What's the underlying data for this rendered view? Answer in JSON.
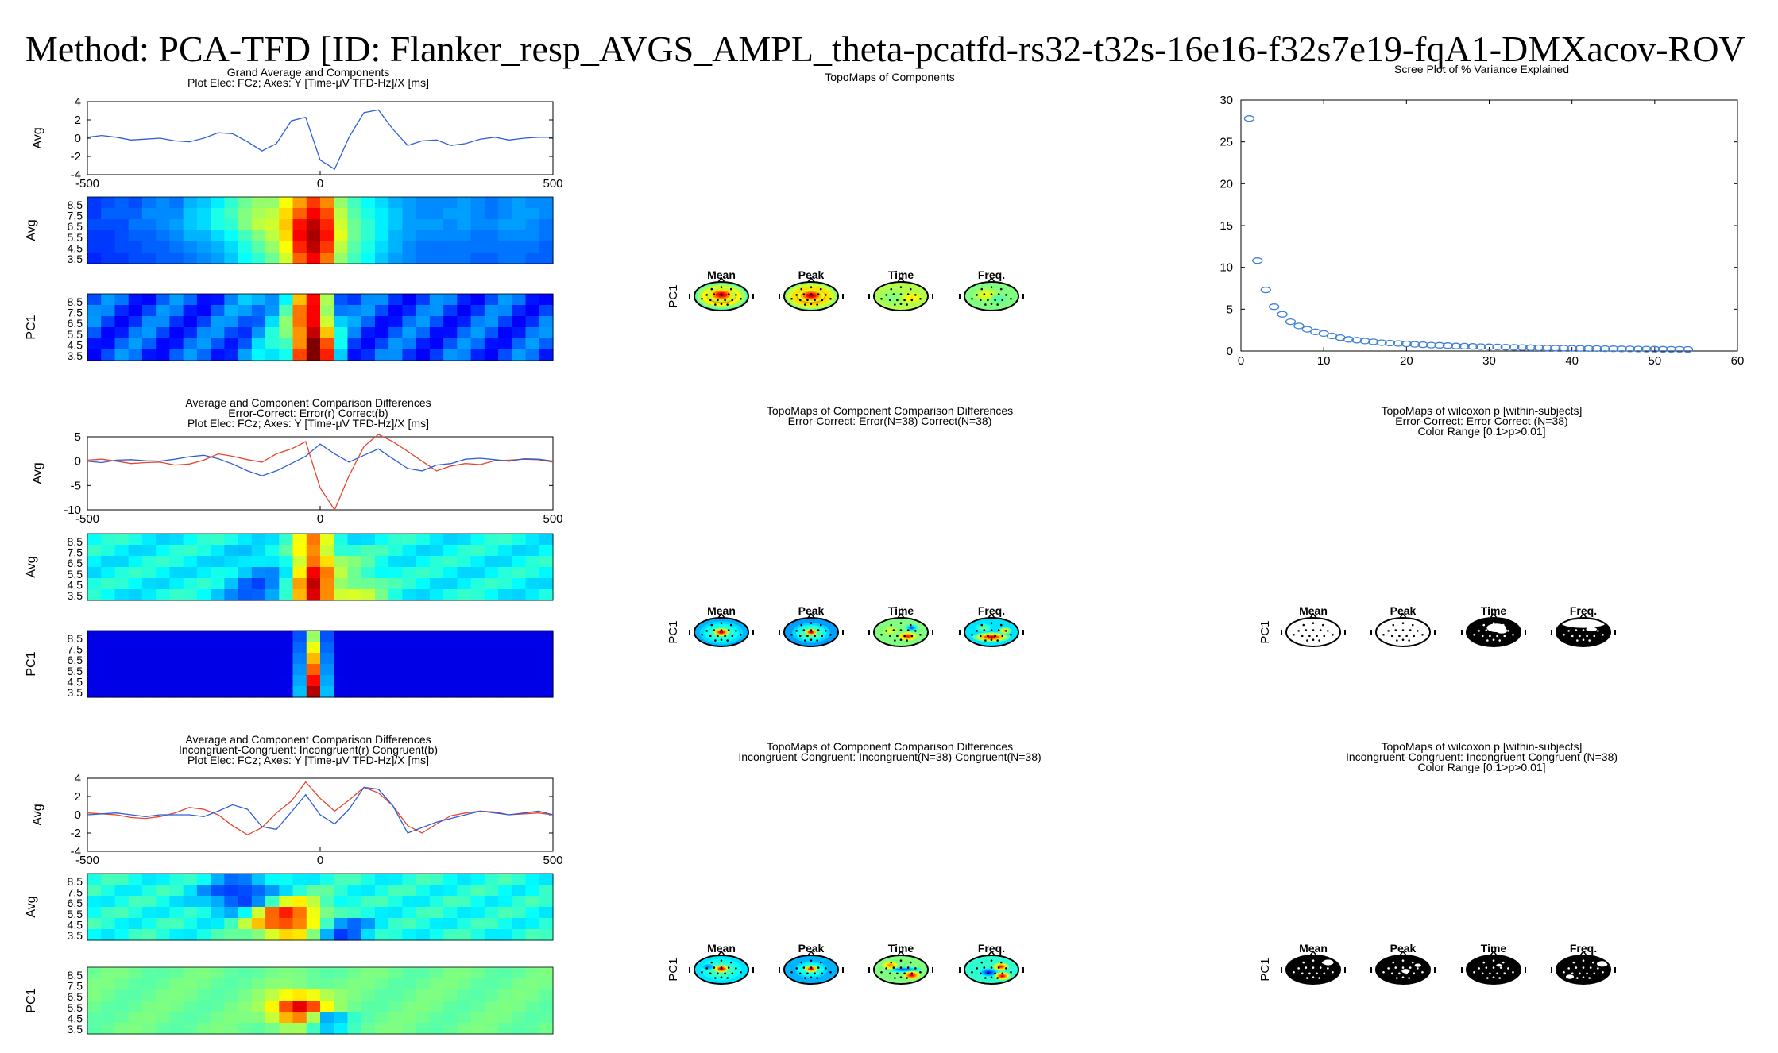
{
  "title": "Method: PCA-TFD   [ID: Flanker_resp_AVGS_AMPL_theta-pcatfd-rs32-t32s-16e16-f32s7e19-fqA1-DMXacov-ROV",
  "colors": {
    "blue_line": "#2f5fd8",
    "red_line": "#e8452c",
    "scree_marker": "#3f7fd6",
    "colormap": "jet"
  },
  "rows": [
    {
      "heading": [
        "Grand Average and Components",
        "Plot Elec: FCz; Axes: Y [Time-μV TFD-Hz]/X [ms]"
      ],
      "line_ylabel": "Avg",
      "line_xticks": [
        "-500",
        "0",
        "500"
      ],
      "line_yticks": [
        "4",
        "2",
        "0",
        "-2",
        "-4"
      ],
      "heat_yticks": [
        "8.5",
        "7.5",
        "6.5",
        "5.5",
        "4.5",
        "3.5"
      ],
      "heat_labels": [
        "Avg",
        "PC1"
      ],
      "topo_heading": [
        "TopoMaps of Components"
      ],
      "topo_row_label": "PC1",
      "topo_labels": [
        "Mean",
        "Peak",
        "Time",
        "Freq."
      ],
      "right_heading": [
        "Scree Plot of % Variance Explained"
      ]
    },
    {
      "heading": [
        "Average and Component Comparison Differences",
        "Error-Correct:  Error(r)  Correct(b)",
        "Plot Elec: FCz; Axes: Y [Time-μV TFD-Hz]/X [ms]"
      ],
      "line_ylabel": "Avg",
      "line_xticks": [
        "-500",
        "0",
        "500"
      ],
      "line_yticks": [
        "5",
        "0",
        "-5",
        "-10"
      ],
      "heat_yticks": [
        "8.5",
        "7.5",
        "6.5",
        "5.5",
        "4.5",
        "3.5"
      ],
      "heat_labels": [
        "Avg",
        "PC1"
      ],
      "topo_heading": [
        "TopoMaps of Component Comparison Differences",
        "Error-Correct:  Error(N=38) Correct(N=38)"
      ],
      "topo_row_label": "PC1",
      "topo_labels": [
        "Mean",
        "Peak",
        "Time",
        "Freq."
      ],
      "right_heading": [
        "TopoMaps of wilcoxon p [within-subjects]",
        "Error-Correct:  Error Correct (N=38)",
        "Color Range [0.1>p>0.01]"
      ],
      "wil_row_label": "PC1",
      "wil_labels": [
        "Mean",
        "Peak",
        "Time",
        "Freq."
      ]
    },
    {
      "heading": [
        "Average and Component Comparison Differences",
        "Incongruent-Congruent:  Incongruent(r)  Congruent(b)",
        "Plot Elec: FCz; Axes: Y [Time-μV TFD-Hz]/X [ms]"
      ],
      "line_ylabel": "Avg",
      "line_xticks": [
        "-500",
        "0",
        "500"
      ],
      "line_yticks": [
        "4",
        "2",
        "0",
        "-2",
        "-4"
      ],
      "heat_yticks": [
        "8.5",
        "7.5",
        "6.5",
        "5.5",
        "4.5",
        "3.5"
      ],
      "heat_labels": [
        "Avg",
        "PC1"
      ],
      "topo_heading": [
        "TopoMaps of Component Comparison Differences",
        "Incongruent-Congruent:  Incongruent(N=38) Congruent(N=38)"
      ],
      "topo_row_label": "PC1",
      "topo_labels": [
        "Mean",
        "Peak",
        "Time",
        "Freq."
      ],
      "right_heading": [
        "TopoMaps of wilcoxon p [within-subjects]",
        "Incongruent-Congruent:  Incongruent Congruent (N=38)",
        "Color Range [0.1>p>0.01]"
      ],
      "wil_row_label": "PC1",
      "wil_labels": [
        "Mean",
        "Peak",
        "Time",
        "Freq."
      ]
    }
  ],
  "chart_data": [
    {
      "type": "line",
      "panel": "grand-average",
      "x": [
        -500,
        -469,
        -438,
        -406,
        -375,
        -344,
        -312,
        -281,
        -250,
        -219,
        -188,
        -156,
        -125,
        -94,
        -62,
        -31,
        0,
        31,
        62,
        94,
        125,
        156,
        188,
        219,
        250,
        281,
        312,
        344,
        375,
        406,
        438,
        469,
        500
      ],
      "xlim": [
        -500,
        500
      ],
      "ylim": [
        -4,
        4
      ],
      "xticks": [
        -500,
        0,
        500
      ],
      "yticks": [
        -4,
        -2,
        0,
        2,
        4
      ],
      "series": [
        {
          "color": "blue",
          "values": [
            0.1,
            0.3,
            0.1,
            -0.2,
            -0.1,
            0,
            -0.3,
            -0.4,
            0,
            0.6,
            0.5,
            -0.4,
            -1.4,
            -0.6,
            1.9,
            2.3,
            -2.4,
            -3.4,
            0.1,
            2.8,
            3.1,
            1.0,
            -0.8,
            -0.3,
            -0.2,
            -0.8,
            -0.6,
            -0.1,
            0.1,
            -0.2,
            0,
            0.1,
            0.1
          ]
        }
      ]
    },
    {
      "type": "line",
      "panel": "error-correct",
      "x": [
        -500,
        -469,
        -438,
        -406,
        -375,
        -344,
        -312,
        -281,
        -250,
        -219,
        -188,
        -156,
        -125,
        -94,
        -62,
        -31,
        0,
        31,
        62,
        94,
        125,
        156,
        188,
        219,
        250,
        281,
        312,
        344,
        375,
        406,
        438,
        469,
        500
      ],
      "xlim": [
        -500,
        500
      ],
      "ylim": [
        -10,
        5
      ],
      "xticks": [
        -500,
        0,
        500
      ],
      "yticks": [
        -10,
        -5,
        0,
        5
      ],
      "series": [
        {
          "color": "red",
          "values": [
            0.2,
            0.4,
            0,
            -0.5,
            -0.3,
            -0.2,
            -0.8,
            -0.6,
            0.2,
            1.5,
            1.0,
            0.3,
            -0.2,
            1.5,
            2.5,
            4,
            -5.5,
            -10,
            -3,
            3,
            5.5,
            4,
            2,
            0,
            -2,
            -1,
            -0.5,
            -0.7,
            0.1,
            0.2,
            0.4,
            0.3,
            -0.2
          ]
        },
        {
          "color": "blue",
          "values": [
            0,
            -0.3,
            0.2,
            0.3,
            0.1,
            0,
            0.4,
            0.9,
            1.2,
            0.5,
            -0.6,
            -2,
            -3,
            -2,
            -0.5,
            1,
            3.5,
            1.5,
            -0.2,
            1.2,
            2.5,
            0.5,
            -1.5,
            -2,
            -0.8,
            -0.5,
            0.4,
            0.6,
            0.3,
            0,
            0.5,
            0.4,
            0
          ]
        }
      ]
    },
    {
      "type": "line",
      "panel": "incongruent-congruent",
      "x": [
        -500,
        -469,
        -438,
        -406,
        -375,
        -344,
        -312,
        -281,
        -250,
        -219,
        -188,
        -156,
        -125,
        -94,
        -62,
        -31,
        0,
        31,
        62,
        94,
        125,
        156,
        188,
        219,
        250,
        281,
        312,
        344,
        375,
        406,
        438,
        469,
        500
      ],
      "xlim": [
        -500,
        500
      ],
      "ylim": [
        -4,
        4
      ],
      "xticks": [
        -500,
        0,
        500
      ],
      "yticks": [
        -4,
        -2,
        0,
        2,
        4
      ],
      "series": [
        {
          "color": "red",
          "values": [
            0.2,
            0.1,
            0,
            -0.3,
            -0.4,
            -0.2,
            0.2,
            0.8,
            0.6,
            0,
            -1.2,
            -2.2,
            -1.4,
            0.2,
            1.5,
            3.6,
            1.8,
            0.4,
            1.6,
            3.0,
            2.4,
            1.0,
            -1.2,
            -2.0,
            -1.0,
            -0.1,
            0.2,
            0.4,
            0.3,
            0,
            0.1,
            0.2,
            0
          ]
        },
        {
          "color": "blue",
          "values": [
            0,
            0.1,
            0.2,
            0,
            -0.2,
            0,
            0,
            0,
            -0.2,
            0.4,
            1.1,
            0.6,
            -1.3,
            -1.6,
            0.3,
            2.2,
            0,
            -1.0,
            0.6,
            3.0,
            2.8,
            1.0,
            -2.0,
            -1.4,
            -0.8,
            -0.4,
            0,
            0.4,
            0.2,
            0,
            0.2,
            0.4,
            0
          ]
        }
      ]
    },
    {
      "type": "scatter",
      "panel": "scree",
      "xlim": [
        0,
        60
      ],
      "ylim": [
        0,
        30
      ],
      "xticks": [
        0,
        10,
        20,
        30,
        40,
        50,
        60
      ],
      "yticks": [
        0,
        5,
        10,
        15,
        20,
        25,
        30
      ],
      "x": [
        1,
        2,
        3,
        4,
        5,
        6,
        7,
        8,
        9,
        10,
        11,
        12,
        13,
        14,
        15,
        16,
        17,
        18,
        19,
        20,
        21,
        22,
        23,
        24,
        25,
        26,
        27,
        28,
        29,
        30,
        31,
        32,
        33,
        34,
        35,
        36,
        37,
        38,
        39,
        40,
        41,
        42,
        43,
        44,
        45,
        46,
        47,
        48,
        49,
        50,
        51,
        52,
        53,
        54
      ],
      "values": [
        27.8,
        10.8,
        7.3,
        5.3,
        4.4,
        3.5,
        3.0,
        2.6,
        2.3,
        2.1,
        1.8,
        1.6,
        1.4,
        1.3,
        1.2,
        1.1,
        1.0,
        0.95,
        0.9,
        0.85,
        0.8,
        0.75,
        0.7,
        0.68,
        0.65,
        0.6,
        0.58,
        0.55,
        0.52,
        0.5,
        0.48,
        0.46,
        0.44,
        0.42,
        0.4,
        0.38,
        0.36,
        0.35,
        0.34,
        0.32,
        0.31,
        0.3,
        0.29,
        0.28,
        0.27,
        0.26,
        0.25,
        0.24,
        0.23,
        0.22,
        0.21,
        0.2,
        0.2,
        0.19
      ]
    },
    {
      "type": "heatmap",
      "panel": "grand-average-avg",
      "xlim": [
        -500,
        500
      ],
      "yticks": [
        8.5,
        7.5,
        6.5,
        5.5,
        4.5,
        3.5
      ],
      "colormap": "jet",
      "rows": [
        [
          0.18,
          0.2,
          0.22,
          0.2,
          0.24,
          0.26,
          0.24,
          0.3,
          0.32,
          0.36,
          0.42,
          0.48,
          0.52,
          0.52,
          0.62,
          0.72,
          0.82,
          0.74,
          0.52,
          0.44,
          0.38,
          0.34,
          0.3,
          0.28,
          0.26,
          0.26,
          0.26,
          0.28,
          0.26,
          0.24,
          0.26,
          0.28,
          0.26,
          0.26
        ],
        [
          0.18,
          0.22,
          0.22,
          0.22,
          0.26,
          0.26,
          0.26,
          0.32,
          0.34,
          0.4,
          0.44,
          0.5,
          0.54,
          0.56,
          0.66,
          0.78,
          0.88,
          0.8,
          0.56,
          0.46,
          0.4,
          0.36,
          0.32,
          0.28,
          0.26,
          0.26,
          0.28,
          0.28,
          0.26,
          0.24,
          0.26,
          0.28,
          0.28,
          0.26
        ],
        [
          0.2,
          0.2,
          0.2,
          0.24,
          0.24,
          0.26,
          0.28,
          0.32,
          0.34,
          0.4,
          0.42,
          0.5,
          0.56,
          0.58,
          0.68,
          0.86,
          0.94,
          0.84,
          0.58,
          0.48,
          0.42,
          0.36,
          0.32,
          0.28,
          0.28,
          0.28,
          0.26,
          0.28,
          0.26,
          0.26,
          0.28,
          0.28,
          0.26,
          0.24
        ],
        [
          0.18,
          0.18,
          0.2,
          0.22,
          0.22,
          0.24,
          0.26,
          0.3,
          0.3,
          0.34,
          0.38,
          0.44,
          0.5,
          0.56,
          0.66,
          0.88,
          0.96,
          0.86,
          0.6,
          0.48,
          0.42,
          0.36,
          0.3,
          0.28,
          0.26,
          0.26,
          0.26,
          0.26,
          0.24,
          0.24,
          0.26,
          0.26,
          0.26,
          0.24
        ],
        [
          0.18,
          0.18,
          0.2,
          0.2,
          0.22,
          0.22,
          0.24,
          0.26,
          0.28,
          0.3,
          0.34,
          0.4,
          0.46,
          0.52,
          0.62,
          0.84,
          0.94,
          0.82,
          0.56,
          0.46,
          0.4,
          0.34,
          0.3,
          0.26,
          0.24,
          0.24,
          0.24,
          0.24,
          0.24,
          0.24,
          0.24,
          0.24,
          0.24,
          0.22
        ],
        [
          0.16,
          0.18,
          0.18,
          0.2,
          0.2,
          0.22,
          0.22,
          0.24,
          0.26,
          0.28,
          0.32,
          0.38,
          0.42,
          0.48,
          0.58,
          0.78,
          0.88,
          0.76,
          0.52,
          0.44,
          0.38,
          0.32,
          0.28,
          0.26,
          0.24,
          0.24,
          0.24,
          0.24,
          0.22,
          0.22,
          0.24,
          0.24,
          0.22,
          0.22
        ]
      ]
    }
  ]
}
